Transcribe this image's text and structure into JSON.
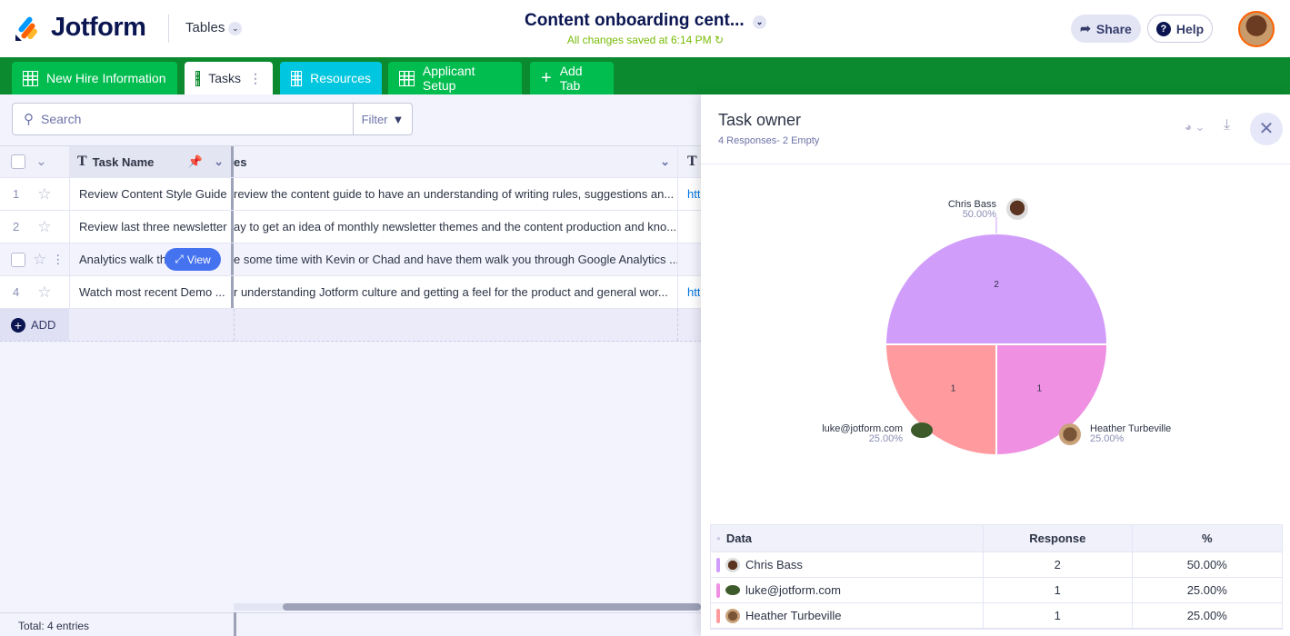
{
  "app": {
    "brand": "Jotform",
    "product_menu": "Tables",
    "doc_title": "Content onboarding cent...",
    "save_status": "All changes saved at 6:14 PM",
    "share": "Share",
    "help": "Help"
  },
  "tabs": [
    {
      "label": "New Hire Information"
    },
    {
      "label": "Tasks"
    },
    {
      "label": "Resources"
    },
    {
      "label": "Applicant Setup"
    },
    {
      "label": "Add Tab"
    }
  ],
  "toolbar": {
    "search_placeholder": "Search",
    "filter": "Filter"
  },
  "table": {
    "columns": [
      "Task Name",
      "es",
      "T"
    ],
    "rows": [
      {
        "num": "1",
        "name": "Review Content Style Guide",
        "notes": "review the content guide to have an understanding of writing rules, suggestions an...",
        "link": "htt"
      },
      {
        "num": "2",
        "name": "Review last three newsletter",
        "notes": "ay to get an idea of monthly newsletter themes and the content production and kno...",
        "link": ""
      },
      {
        "num": "",
        "name": "Analytics walk th",
        "notes": "e some time with Kevin or Chad and have them walk you through Google Analytics ...",
        "link": ""
      },
      {
        "num": "4",
        "name": "Watch most recent Demo ...",
        "notes": "r understanding Jotform culture and getting a feel for the product and general wor...",
        "link": "htt"
      }
    ],
    "view_button": "View",
    "add": "ADD",
    "total": "Total: 4 entries"
  },
  "panel": {
    "title": "Task owner",
    "subtitle": "4 Responses- 2 Empty",
    "headers": [
      "Data",
      "Response",
      "%"
    ]
  },
  "chart_data": {
    "type": "pie",
    "title": "Task owner",
    "slices": [
      {
        "label": "Chris Bass",
        "value": 2,
        "percent": "50.00%",
        "color": "#d19dfb"
      },
      {
        "label": "luke@jotform.com",
        "value": 1,
        "percent": "25.00%",
        "color": "#ef90e3"
      },
      {
        "label": "Heather Turbeville",
        "value": 1,
        "percent": "25.00%",
        "color": "#ff9b9f"
      }
    ]
  }
}
